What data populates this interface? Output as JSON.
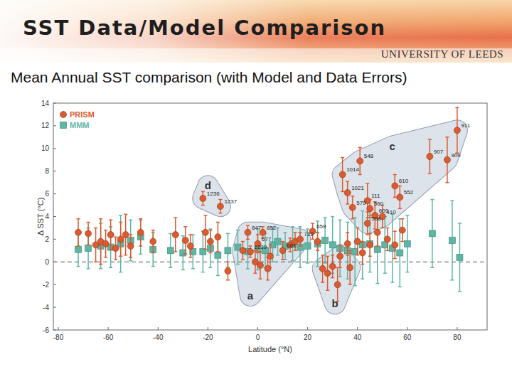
{
  "slide": {
    "title": "SST Data/Model Comparison",
    "logo": "UNIVERSITY OF LEEDS"
  },
  "chart_data": {
    "type": "scatter",
    "title": "Mean Annual SST comparison (with Model and Data Errors)",
    "x_label": "Latitude (°N)",
    "y_label": "Δ SST (°C)",
    "xlim": [
      -82,
      92
    ],
    "xticks": [
      -80,
      -60,
      -40,
      -20,
      0,
      20,
      40,
      60,
      80
    ],
    "ylim": [
      -6,
      14
    ],
    "yticks": [
      -6,
      -4,
      -2,
      0,
      2,
      4,
      6,
      8,
      10,
      12,
      14
    ],
    "grid": false,
    "legend": "top left",
    "reference_line": {
      "y": 0,
      "line_style": "dashed"
    },
    "region_labels": [
      {
        "label": "a",
        "x": -3,
        "y": -3.0
      },
      {
        "label": "b",
        "x": 31,
        "y": -3.7
      },
      {
        "label": "c",
        "x": 54,
        "y": 10.2
      },
      {
        "label": "d",
        "x": -20,
        "y": 6.7
      }
    ],
    "series": [
      {
        "name": "MMM",
        "color": "#5db5a6",
        "marker": "square",
        "x": [
          -72,
          -68,
          -63,
          -59,
          -55,
          -51,
          -47,
          -42,
          -35,
          -30,
          -26,
          -22,
          -19,
          -16,
          -12,
          -8,
          -4,
          0,
          3,
          6,
          8,
          11,
          14,
          17,
          20,
          24,
          27,
          30,
          33,
          36,
          39,
          42,
          45,
          48,
          51,
          54,
          57,
          60,
          70,
          78,
          81
        ],
        "values": [
          1.1,
          1.2,
          1.4,
          1.3,
          1.6,
          1.9,
          2.2,
          1.1,
          1.0,
          0.8,
          0.9,
          0.9,
          1.2,
          0.6,
          1.0,
          1.3,
          0.9,
          1.1,
          1.0,
          1.5,
          1.8,
          1.4,
          1.6,
          1.3,
          1.4,
          1.6,
          1.9,
          1.5,
          1.2,
          1.0,
          0.9,
          1.5,
          1.6,
          1.1,
          1.5,
          1.2,
          0.8,
          1.6,
          2.5,
          1.9,
          0.4
        ],
        "errors": [
          1.5,
          1.8,
          2.0,
          1.8,
          2.5,
          1.8,
          1.5,
          1.5,
          1.5,
          1.5,
          1.5,
          1.8,
          1.7,
          1.8,
          1.5,
          1.5,
          1.5,
          1.8,
          1.5,
          1.5,
          1.2,
          1.2,
          1.5,
          1.8,
          1.5,
          2.0,
          2.0,
          2.5,
          2.5,
          2.5,
          3.0,
          3.0,
          2.5,
          3.0,
          2.5,
          3.0,
          3.0,
          2.5,
          3.0,
          3.5,
          3.0
        ]
      },
      {
        "name": "PRISM",
        "color": "#de5a2e",
        "marker": "circle",
        "x": [
          -72,
          -68,
          -65,
          -63,
          -61,
          -59,
          -57,
          -55,
          -53,
          -51,
          -47,
          -42,
          -33,
          -29,
          -27,
          -21,
          -19,
          -16,
          -22,
          -15,
          -12,
          -6,
          -4,
          2,
          0,
          -3,
          -1,
          1,
          4,
          5,
          10,
          13,
          15,
          17,
          22,
          24,
          26,
          28,
          30,
          32,
          33,
          36,
          37,
          40,
          42,
          45,
          48,
          52,
          55,
          58,
          34,
          41,
          36,
          44,
          55,
          57,
          38,
          45,
          47,
          44,
          50,
          69,
          76,
          80
        ],
        "values": [
          2.6,
          2.5,
          1.5,
          1.8,
          1.6,
          2.4,
          1.2,
          2.0,
          2.4,
          1.4,
          2.6,
          1.8,
          2.4,
          1.9,
          1.4,
          2.6,
          1.8,
          2.2,
          5.6,
          4.9,
          -0.8,
          1.0,
          2.6,
          2.6,
          1.6,
          0.9,
          0.0,
          -0.3,
          -0.6,
          0.5,
          1.0,
          1.5,
          1.8,
          2.0,
          2.7,
          1.8,
          -0.6,
          -1.0,
          -0.4,
          -2.0,
          0.5,
          1.6,
          -0.5,
          1.8,
          0.8,
          1.5,
          2.6,
          2.0,
          1.5,
          2.8,
          7.7,
          8.9,
          6.1,
          5.4,
          6.7,
          5.7,
          4.8,
          4.7,
          4.1,
          3.4,
          4.0,
          9.3,
          9.0,
          11.6
        ],
        "errors": [
          1.2,
          1.0,
          1.5,
          2.0,
          1.2,
          1.3,
          1.0,
          1.5,
          1.8,
          1.0,
          1.2,
          1.0,
          1.5,
          1.2,
          1.0,
          1.5,
          1.0,
          1.3,
          0.6,
          0.6,
          0.8,
          0.8,
          0.6,
          0.5,
          0.8,
          0.5,
          1.0,
          1.2,
          1.0,
          1.0,
          0.8,
          0.6,
          0.8,
          0.6,
          0.7,
          0.8,
          1.2,
          1.5,
          1.0,
          1.5,
          1.0,
          1.0,
          1.5,
          1.2,
          1.0,
          1.0,
          1.2,
          1.0,
          1.2,
          1.0,
          1.5,
          1.2,
          1.0,
          1.5,
          1.0,
          1.0,
          1.0,
          0.8,
          1.2,
          1.0,
          1.0,
          1.5,
          2.0,
          2.0
        ],
        "labels": [
          null,
          null,
          null,
          null,
          null,
          null,
          null,
          null,
          null,
          null,
          null,
          null,
          null,
          null,
          null,
          null,
          null,
          null,
          "1236",
          "1237",
          null,
          null,
          "847",
          "852",
          "677",
          "1239",
          null,
          null,
          null,
          null,
          "661",
          null,
          null,
          "722",
          "659",
          null,
          null,
          null,
          null,
          null,
          null,
          null,
          null,
          null,
          null,
          null,
          null,
          null,
          null,
          null,
          "1014",
          "548",
          "1021",
          "111",
          "610",
          "552",
          "579",
          "560",
          "609",
          "508",
          "410",
          "907",
          "909",
          "911"
        ],
        "regions": [
          null,
          null,
          null,
          null,
          null,
          null,
          null,
          null,
          null,
          null,
          null,
          null,
          null,
          null,
          null,
          null,
          null,
          null,
          "d",
          "d",
          null,
          "a",
          "a",
          "a",
          "a",
          "a",
          "a",
          "a",
          "a",
          "a",
          "a",
          "a",
          "a",
          "a",
          null,
          null,
          "b",
          "b",
          "b",
          "b",
          "b",
          null,
          "b",
          null,
          null,
          null,
          null,
          null,
          null,
          null,
          "c",
          "c",
          "c",
          "c",
          "c",
          "c",
          "c",
          "c",
          "c",
          "c",
          "c",
          "c",
          "c",
          "c"
        ]
      }
    ]
  }
}
